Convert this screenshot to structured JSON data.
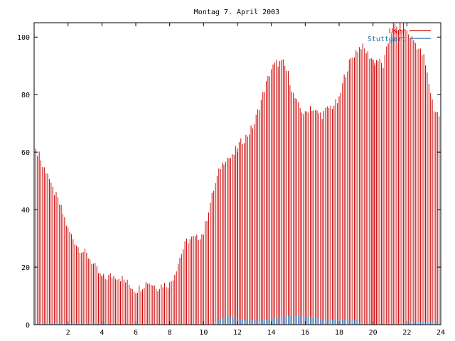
{
  "chart_data": {
    "type": "bar",
    "title": "Montag 7. April 2003",
    "xlabel": "",
    "ylabel": "",
    "xlim": [
      0,
      24
    ],
    "ylim": [
      0,
      105
    ],
    "xticks": [
      2,
      4,
      6,
      8,
      10,
      12,
      14,
      16,
      18,
      20,
      22,
      24
    ],
    "yticks": [
      0,
      20,
      40,
      60,
      80,
      100
    ],
    "grid": false,
    "legend_position": "top-right",
    "series_style": "impulses",
    "colors": {
      "User": "#cc0000",
      "Stuttgart": "#1f6fb2"
    },
    "series": [
      {
        "name": "User",
        "anchors": [
          [
            0.0,
            60
          ],
          [
            0.3,
            60
          ],
          [
            0.5,
            55
          ],
          [
            0.8,
            53
          ],
          [
            1.0,
            48
          ],
          [
            1.2,
            46
          ],
          [
            1.5,
            42
          ],
          [
            1.8,
            37
          ],
          [
            2.0,
            33
          ],
          [
            2.3,
            30
          ],
          [
            2.6,
            27
          ],
          [
            3.0,
            25
          ],
          [
            3.3,
            23
          ],
          [
            3.6,
            20
          ],
          [
            3.9,
            17
          ],
          [
            4.2,
            16
          ],
          [
            4.5,
            17
          ],
          [
            4.8,
            17
          ],
          [
            5.2,
            16
          ],
          [
            5.6,
            14
          ],
          [
            6.0,
            12
          ],
          [
            6.3,
            13
          ],
          [
            6.7,
            15
          ],
          [
            7.0,
            14
          ],
          [
            7.3,
            13
          ],
          [
            7.6,
            14
          ],
          [
            8.0,
            14
          ],
          [
            8.3,
            18
          ],
          [
            8.7,
            25
          ],
          [
            9.0,
            29
          ],
          [
            9.3,
            30
          ],
          [
            9.6,
            30
          ],
          [
            10.0,
            32
          ],
          [
            10.3,
            40
          ],
          [
            10.6,
            47
          ],
          [
            11.0,
            55
          ],
          [
            11.3,
            58
          ],
          [
            11.7,
            58
          ],
          [
            12.0,
            62
          ],
          [
            12.3,
            64
          ],
          [
            12.6,
            66
          ],
          [
            13.0,
            70
          ],
          [
            13.3,
            76
          ],
          [
            13.6,
            82
          ],
          [
            14.0,
            89
          ],
          [
            14.3,
            91
          ],
          [
            14.7,
            91
          ],
          [
            15.0,
            87
          ],
          [
            15.3,
            80
          ],
          [
            15.6,
            76
          ],
          [
            16.0,
            73
          ],
          [
            16.3,
            76
          ],
          [
            16.6,
            74
          ],
          [
            17.0,
            73
          ],
          [
            17.3,
            75
          ],
          [
            17.6,
            76
          ],
          [
            18.0,
            78
          ],
          [
            18.3,
            86
          ],
          [
            18.6,
            91
          ],
          [
            19.0,
            95
          ],
          [
            19.3,
            97
          ],
          [
            19.6,
            95
          ],
          [
            20.0,
            92
          ],
          [
            20.3,
            92
          ],
          [
            20.6,
            90
          ],
          [
            20.9,
            98
          ],
          [
            21.2,
            104
          ],
          [
            21.5,
            103
          ],
          [
            21.8,
            104
          ],
          [
            22.1,
            101
          ],
          [
            22.4,
            99
          ],
          [
            22.7,
            96
          ],
          [
            23.0,
            93
          ],
          [
            23.3,
            84
          ],
          [
            23.6,
            75
          ],
          [
            24.0,
            72
          ]
        ],
        "spikes": [
          [
            4.0,
            17
          ],
          [
            12.0,
            60
          ],
          [
            20.0,
            92
          ],
          [
            20.1,
            90
          ]
        ]
      },
      {
        "name": "Stuttgart",
        "anchors": [
          [
            0.0,
            0.6
          ],
          [
            4.4,
            0.6
          ],
          [
            4.5,
            0
          ],
          [
            10.5,
            0
          ],
          [
            10.6,
            0.8
          ],
          [
            11.0,
            2
          ],
          [
            11.5,
            3
          ],
          [
            12.0,
            2
          ],
          [
            13.0,
            1.5
          ],
          [
            14.0,
            2
          ],
          [
            15.0,
            3
          ],
          [
            16.0,
            3
          ],
          [
            17.0,
            2
          ],
          [
            18.0,
            1.8
          ],
          [
            19.0,
            1.5
          ],
          [
            19.4,
            1
          ],
          [
            19.5,
            0
          ],
          [
            22.0,
            0
          ],
          [
            22.1,
            1
          ],
          [
            24.0,
            1
          ]
        ]
      }
    ]
  }
}
